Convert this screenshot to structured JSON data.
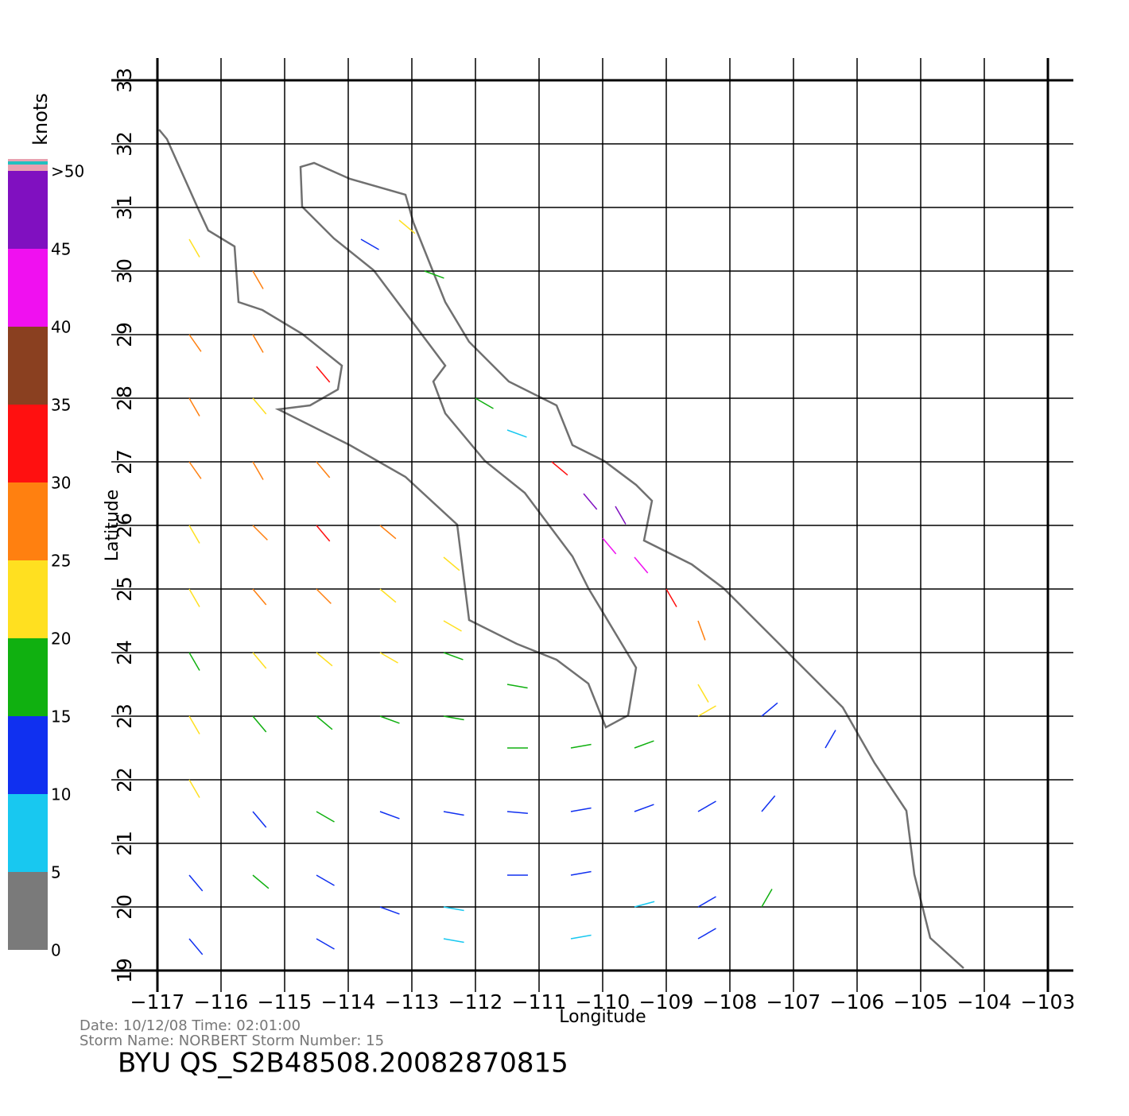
{
  "chart_data": {
    "type": "wind-vectors",
    "xlabel": "Longitude",
    "ylabel": "Latitude",
    "xlim": [
      -117,
      -103
    ],
    "ylim": [
      19,
      33
    ],
    "xticks": [
      {
        "value": -117,
        "label": "−117"
      },
      {
        "value": -116,
        "label": "−116"
      },
      {
        "value": -115,
        "label": "−115"
      },
      {
        "value": -114,
        "label": "−114"
      },
      {
        "value": -113,
        "label": "−113"
      },
      {
        "value": -112,
        "label": "−112"
      },
      {
        "value": -111,
        "label": "−111"
      },
      {
        "value": -110,
        "label": "−110"
      },
      {
        "value": -109,
        "label": "−109"
      },
      {
        "value": -108,
        "label": "−108"
      },
      {
        "value": -107,
        "label": "−107"
      },
      {
        "value": -106,
        "label": "−106"
      },
      {
        "value": -105,
        "label": "−105"
      },
      {
        "value": -104,
        "label": "−104"
      },
      {
        "value": -103,
        "label": "−103"
      }
    ],
    "yticks": [
      19,
      20,
      21,
      22,
      23,
      24,
      25,
      26,
      27,
      28,
      29,
      30,
      31,
      32,
      33
    ],
    "grid": true,
    "colorbar": {
      "title": "knots",
      "labels": [
        "0",
        "5",
        "10",
        "15",
        "20",
        "25",
        "30",
        "35",
        "40",
        "45",
        ">50"
      ],
      "colors": [
        "#7a7a7a",
        "#18c8f0",
        "#1030f0",
        "#10b010",
        "#ffe020",
        "#ff8010",
        "#ff1010",
        "#8a4020",
        "#f010f0",
        "#8010c0",
        "#e8a0b0"
      ]
    },
    "vectors": {
      "lon": [
        -116.5,
        -115.5,
        -116.5,
        -115.5,
        -114.5,
        -116.5,
        -115.5,
        -116.5,
        -115.5,
        -114.5,
        -116.5,
        -115.5,
        -114.5,
        -113.5,
        -112.5,
        -116.5,
        -115.5,
        -114.5,
        -113.5,
        -112.5,
        -116.5,
        -115.5,
        -114.5,
        -113.5,
        -112.5,
        -111.5,
        -116.5,
        -115.5,
        -114.5,
        -113.5,
        -112.5,
        -111.5,
        -110.5,
        -109.5,
        -108.5,
        -107.5,
        -116.5,
        -115.5,
        -114.5,
        -113.5,
        -112.5,
        -111.5,
        -110.5,
        -109.5,
        -108.5,
        -107.5,
        -106.5,
        -116.5,
        -115.5,
        -114.5,
        -113.5,
        -112.5,
        -111.5,
        -110.5,
        -109.5,
        -108.5,
        -107.5,
        -116.5,
        -114.5,
        -112.5,
        -110.5,
        -108.5,
        -112,
        -111.5,
        -110.8,
        -110.3,
        -109.8,
        -110,
        -109.5,
        -109,
        -108.5,
        -108.5,
        -113.8,
        -113.2,
        -112.8
      ],
      "lat": [
        30.5,
        30,
        29,
        29,
        28.5,
        28,
        28,
        27,
        27,
        27,
        26,
        26,
        26,
        26,
        25.5,
        25,
        25,
        25,
        25,
        24.5,
        24,
        24,
        24,
        24,
        24,
        23.5,
        23,
        23,
        23,
        23,
        23,
        22.5,
        22.5,
        22.5,
        23,
        23,
        22,
        21.5,
        21.5,
        21.5,
        21.5,
        21.5,
        21.5,
        21.5,
        21.5,
        21.5,
        22.5,
        20.5,
        20.5,
        20.5,
        20,
        20,
        20.5,
        20.5,
        20,
        20,
        20,
        19.5,
        19.5,
        19.5,
        19.5,
        19.5,
        28,
        27.5,
        27,
        26.5,
        26.3,
        25.8,
        25.5,
        25,
        24.5,
        23.5,
        30.5,
        30.8,
        30
      ],
      "speed": [
        24,
        26,
        25,
        28,
        30,
        26,
        24,
        27,
        25,
        28,
        24,
        26,
        30,
        28,
        22,
        23,
        25,
        27,
        24,
        21,
        19,
        20,
        22,
        21,
        18,
        18,
        21,
        18,
        17,
        16,
        15,
        17,
        16,
        15,
        20,
        14,
        20,
        14,
        16,
        13,
        12,
        12,
        13,
        12,
        11,
        12,
        10,
        13,
        15,
        13,
        11,
        9,
        12,
        12,
        9,
        11,
        15,
        12,
        12,
        6,
        8,
        10,
        18,
        8,
        30,
        45,
        47,
        42,
        44,
        33,
        28,
        23,
        14,
        20,
        16
      ],
      "direction": [
        150,
        150,
        145,
        150,
        140,
        150,
        140,
        145,
        150,
        140,
        150,
        135,
        140,
        130,
        130,
        150,
        140,
        135,
        130,
        120,
        150,
        140,
        130,
        120,
        110,
        100,
        150,
        140,
        130,
        110,
        100,
        90,
        80,
        70,
        60,
        50,
        150,
        140,
        120,
        110,
        100,
        95,
        80,
        70,
        60,
        40,
        30,
        140,
        130,
        120,
        110,
        100,
        90,
        80,
        75,
        60,
        30,
        140,
        120,
        100,
        80,
        60,
        120,
        110,
        130,
        140,
        150,
        140,
        140,
        150,
        160,
        150,
        120,
        130,
        110
      ]
    },
    "notes": [
      "Date: 10/12/08   Time: 02:01:00",
      "Storm  Name: NORBERT    Storm  Number: 15"
    ],
    "title": "BYU  QS_S2B48508.20082870815"
  }
}
